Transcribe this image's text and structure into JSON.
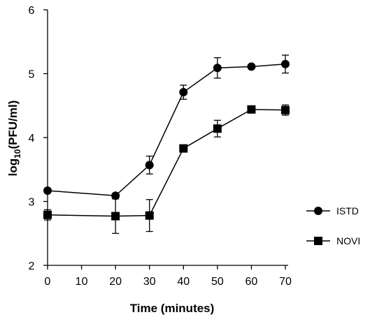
{
  "chart_data": {
    "type": "line",
    "title": "",
    "xlabel": "Time (minutes)",
    "ylabel_parts": {
      "prefix": "log",
      "subscript": "10",
      "suffix": "(PFU/ml)"
    },
    "xlim": [
      0,
      70
    ],
    "ylim": [
      2,
      6
    ],
    "x_ticks": [
      0,
      10,
      20,
      30,
      40,
      50,
      60,
      70
    ],
    "y_ticks": [
      2,
      3,
      4,
      5,
      6
    ],
    "grid": false,
    "legend_position": "right",
    "series": [
      {
        "name": "ISTD",
        "marker": "circle",
        "color": "#000000",
        "x": [
          0,
          20,
          30,
          40,
          50,
          60,
          70
        ],
        "y": [
          3.17,
          3.09,
          3.57,
          4.71,
          5.09,
          5.11,
          5.15
        ],
        "err": [
          0.03,
          0.03,
          0.14,
          0.11,
          0.16,
          0.03,
          0.14
        ]
      },
      {
        "name": "NOVI",
        "marker": "square",
        "color": "#000000",
        "x": [
          0,
          20,
          30,
          40,
          50,
          60,
          70
        ],
        "y": [
          2.79,
          2.77,
          2.78,
          3.83,
          4.14,
          4.44,
          4.43
        ],
        "err": [
          0.08,
          0.27,
          0.25,
          0.03,
          0.13,
          0.03,
          0.08
        ]
      }
    ]
  }
}
